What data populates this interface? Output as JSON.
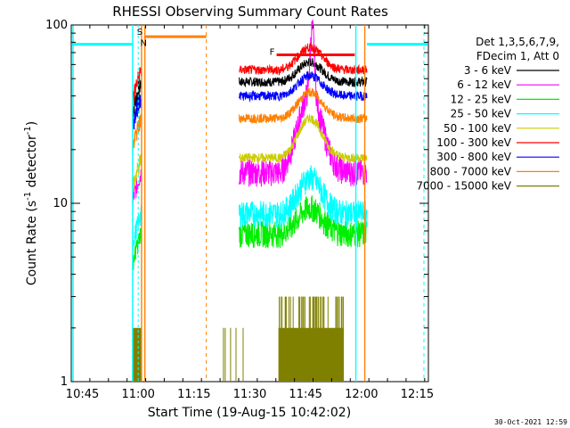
{
  "chart_data": {
    "type": "line",
    "title": "RHESSI Observing Summary Count Rates",
    "xlabel_prefix": "Start Time (",
    "xlabel_date": "19-Aug-15 10:42:02",
    "xlabel_suffix": ")",
    "ylabel_main": "Count Rate (s",
    "ylabel_sup": "-1",
    "ylabel_tail": " detector",
    "ylabel_sup2": "-1",
    "ylabel_end": ")",
    "y_scale": "log",
    "ylim": [
      1,
      100
    ],
    "xlim_minutes": [
      10.7,
      12.3
    ],
    "x_ticks": [
      "10:45",
      "11:00",
      "11:15",
      "11:30",
      "11:45",
      "12:00",
      "12:15"
    ],
    "y_ticks": [
      "1",
      "10",
      "100"
    ],
    "legend_header": [
      "Det 1,3,5,6,7,9,",
      "FDecim 1, Att 0"
    ],
    "legend_position": "top-right",
    "flags": [
      "S",
      "N",
      "F"
    ],
    "timestamp": "30-Oct-2021 12:59",
    "series": [
      {
        "name": "3 - 6 keV",
        "color": "#000000",
        "base": 48,
        "peak": 62
      },
      {
        "name": "6 - 12 keV",
        "color": "#ff00ff",
        "base": 15,
        "peak": 42
      },
      {
        "name": "12 - 25 keV",
        "color": "#00ee00",
        "base": 6.8,
        "peak": 9.5
      },
      {
        "name": "25 - 50 keV",
        "color": "#00ffff",
        "base": 8.8,
        "peak": 14
      },
      {
        "name": "50 - 100 keV",
        "color": "#cccc00",
        "base": 18,
        "peak": 30
      },
      {
        "name": "100 - 300 keV",
        "color": "#ff0000",
        "base": 56,
        "peak": 75
      },
      {
        "name": "300 - 800 keV",
        "color": "#0000ff",
        "base": 40,
        "peak": 52
      },
      {
        "name": "800 - 7000 keV",
        "color": "#ff8000",
        "base": 30,
        "peak": 42
      },
      {
        "name": "7000 - 15000 keV",
        "color": "#808000",
        "base": 1.3,
        "peak": 2.6
      }
    ]
  }
}
